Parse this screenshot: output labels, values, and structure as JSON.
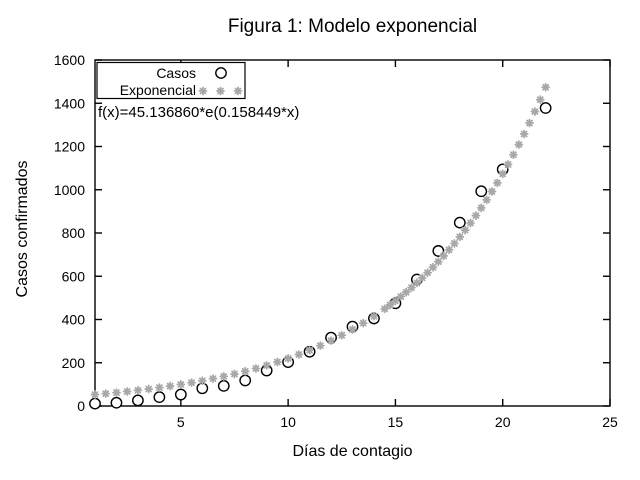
{
  "window": {
    "background": "#ffffff"
  },
  "chart_data": {
    "type": "scatter",
    "title": "Figura 1: Modelo exponencial",
    "xlabel": "Días de contagio",
    "ylabel": "Casos confirmados",
    "annotation": "f(x)=45.136860*e(0.158449*x)",
    "xlim": [
      1,
      25
    ],
    "ylim": [
      0,
      1600
    ],
    "x_ticks": [
      5,
      10,
      15,
      20,
      25
    ],
    "y_ticks": [
      0,
      200,
      400,
      600,
      800,
      1000,
      1200,
      1400,
      1600
    ],
    "grid": false,
    "legend": {
      "position": "top-left",
      "entries": [
        {
          "label": "Casos",
          "marker": "open-circle"
        },
        {
          "label": "Exponencial",
          "marker": "asterisk"
        }
      ]
    },
    "series": [
      {
        "name": "Casos",
        "kind": "data-points",
        "marker": "open-circle",
        "color": "#000000",
        "x": [
          1,
          2,
          3,
          4,
          5,
          6,
          7,
          8,
          9,
          10,
          11,
          12,
          13,
          14,
          15,
          16,
          17,
          18,
          19,
          20,
          22
        ],
        "y": [
          11,
          15,
          26,
          41,
          53,
          82,
          93,
          118,
          164,
          203,
          251,
          316,
          367,
          405,
          475,
          585,
          717,
          848,
          993,
          1094,
          1378
        ]
      },
      {
        "name": "Exponencial",
        "kind": "fit-curve",
        "marker": "asterisk",
        "color": "#a8a8a8",
        "formula": "f(x)=45.136860*e(0.158449*x)",
        "a": 45.13686,
        "b": 0.158449,
        "sample_segments": [
          {
            "from": 1,
            "to": 14.5,
            "step": 0.5
          },
          {
            "from": 14.75,
            "to": 22,
            "step": 0.25
          }
        ]
      }
    ]
  }
}
